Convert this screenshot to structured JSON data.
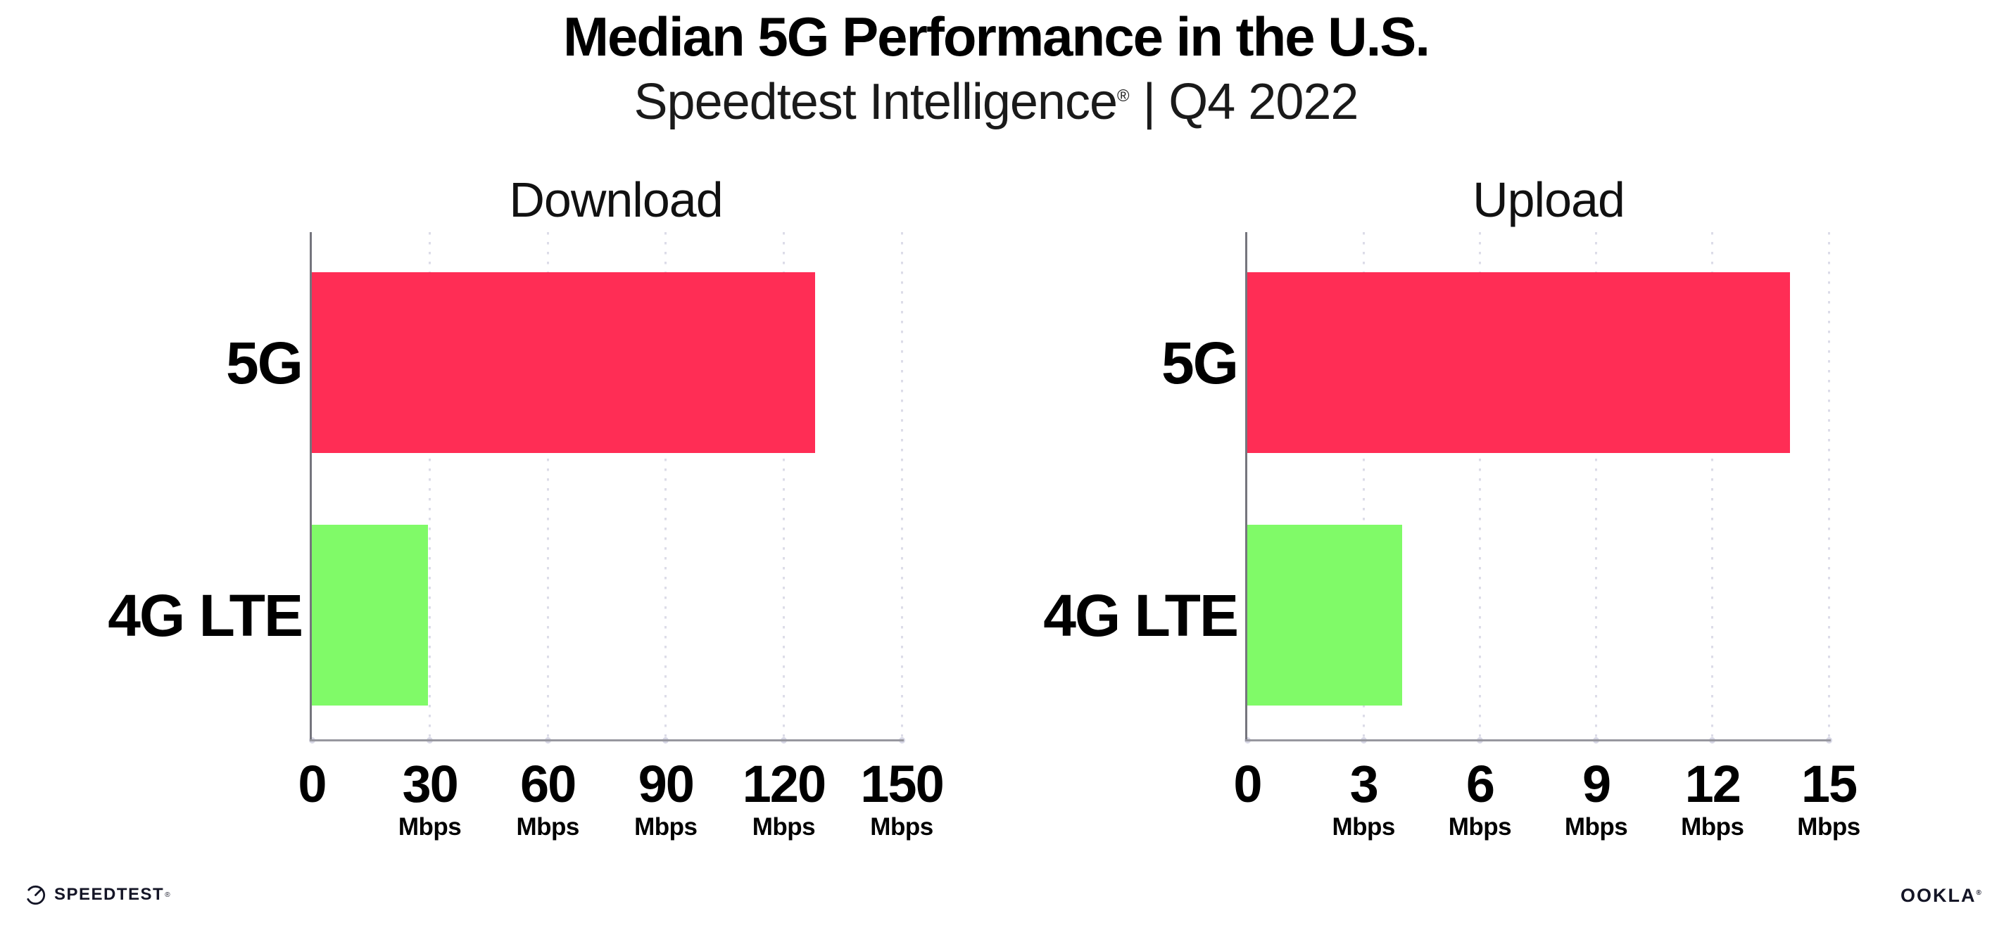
{
  "page": {
    "title": "Median 5G Performance in the U.S.",
    "subtitle": {
      "brand": "Speedtest Intelligence",
      "registered": "®",
      "period": "| Q4 2022"
    }
  },
  "footer": {
    "speedtest": {
      "label": "SPEEDTEST",
      "registered": "®"
    },
    "ookla": {
      "label": "OOKLA",
      "registered": "®"
    }
  },
  "colors": {
    "bar_5g": "#ff2d55",
    "bar_4g": "#80fa68",
    "gridline": "#dcdce8",
    "y_axis": "#75757d",
    "x_axis": "#97979f",
    "text": "#0b0b0b",
    "logo": "#141526"
  },
  "chart_data": [
    {
      "type": "bar",
      "orientation": "horizontal",
      "title": "Download",
      "categories": [
        "5G",
        "4G LTE"
      ],
      "values": [
        128,
        29.5
      ],
      "unit": "Mbps",
      "xlim": [
        0,
        150
      ],
      "xticks": [
        0,
        30,
        60,
        90,
        120,
        150
      ],
      "tick_unit_label": "Mbps",
      "grid": "vertical-dotted",
      "legend": "none",
      "bar_colors": [
        "#ff2d55",
        "#80fa68"
      ]
    },
    {
      "type": "bar",
      "orientation": "horizontal",
      "title": "Upload",
      "categories": [
        "5G",
        "4G LTE"
      ],
      "values": [
        14,
        4
      ],
      "unit": "Mbps",
      "xlim": [
        0,
        15
      ],
      "xticks": [
        0,
        3,
        6,
        9,
        12,
        15
      ],
      "tick_unit_label": "Mbps",
      "grid": "vertical-dotted",
      "legend": "none",
      "bar_colors": [
        "#ff2d55",
        "#80fa68"
      ]
    }
  ]
}
